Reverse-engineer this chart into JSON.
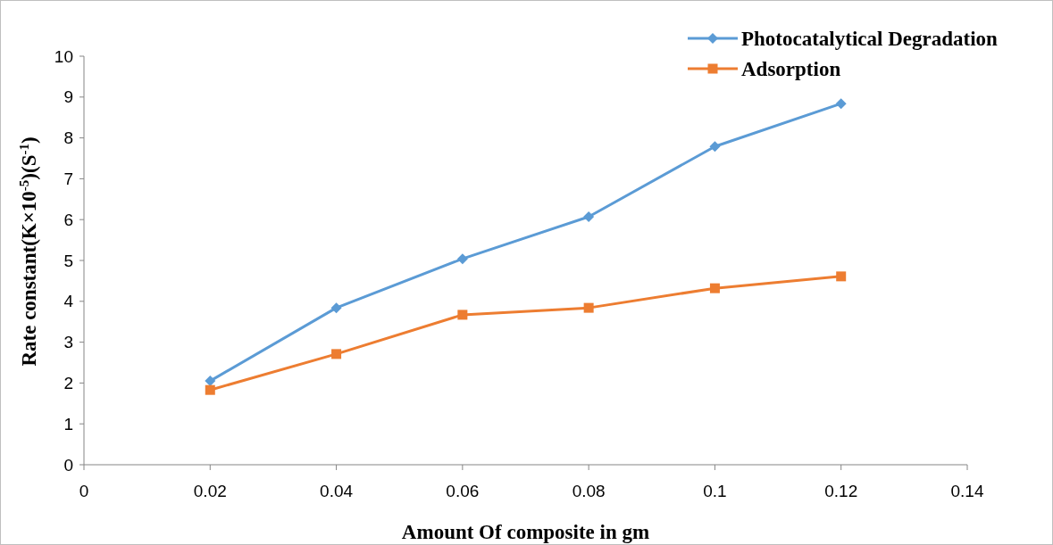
{
  "chart_data": {
    "type": "line",
    "xlabel": "Amount Of composite in gm",
    "ylabel": "Rate constant(K×10$^{-5}$)(S$^{-1}$)",
    "x": [
      0.02,
      0.04,
      0.06,
      0.08,
      0.1,
      0.12
    ],
    "series": [
      {
        "name": "Photocatalytical Degradation",
        "color": "#5b9bd5",
        "marker": "diamond",
        "values": [
          2.05,
          3.84,
          5.04,
          6.07,
          7.79,
          8.84
        ]
      },
      {
        "name": "Adsorption",
        "color": "#ed7d31",
        "marker": "square",
        "values": [
          1.83,
          2.71,
          3.67,
          3.84,
          4.32,
          4.61
        ]
      }
    ],
    "xlim": [
      0,
      0.14
    ],
    "xticks": [
      0,
      0.02,
      0.04,
      0.06,
      0.08,
      0.1,
      0.12,
      0.14
    ],
    "ylim": [
      0,
      10
    ],
    "yticks": [
      0,
      1,
      2,
      3,
      4,
      5,
      6,
      7,
      8,
      9,
      10
    ],
    "grid": false,
    "legend": "top right",
    "line_style": "solid"
  }
}
